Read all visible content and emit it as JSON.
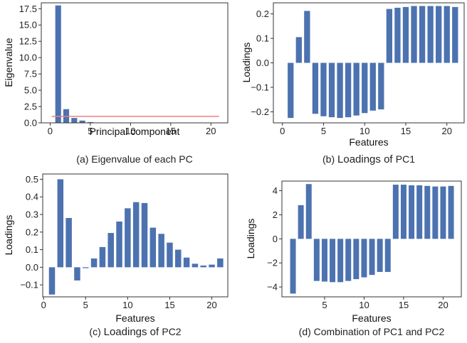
{
  "colors": {
    "bar": "#4c72b0",
    "threshold": "#f08080",
    "frame": "#333333"
  },
  "chart_data": [
    {
      "type": "bar",
      "caption": "(a) Eigenvalue of each PC",
      "xlabel": "Principal component",
      "ylabel": "Eigenvalue",
      "xlim": [
        -1.1,
        22.1
      ],
      "ylim": [
        0,
        18.4
      ],
      "xticks": [
        0,
        5,
        10,
        15,
        20
      ],
      "yticks": [
        0,
        2.5,
        5,
        7.5,
        10,
        12.5,
        15,
        17.5
      ],
      "ytick_labels": [
        "0.0",
        "2.5",
        "5.0",
        "7.5",
        "10.0",
        "12.5",
        "15.0",
        "17.5"
      ],
      "x": [
        1,
        2,
        3,
        4,
        5
      ],
      "values": [
        18.0,
        2.1,
        0.75,
        0.35,
        0.12
      ],
      "threshold": {
        "value": 1.0,
        "from": 0.2,
        "to": 21
      }
    },
    {
      "type": "bar",
      "caption_prefix": "(b) ",
      "caption_strong": "Loadings of ",
      "caption_suffix": "PC1",
      "xlabel": "Features",
      "ylabel": "Loadings",
      "xlim": [
        -1.1,
        22.1
      ],
      "ylim": [
        -0.245,
        0.245
      ],
      "xticks": [
        0,
        5,
        10,
        15,
        20
      ],
      "yticks": [
        -0.2,
        -0.1,
        0.0,
        0.1,
        0.2
      ],
      "ytick_labels": [
        "−0.2",
        "−0.1",
        "0.0",
        "0.1",
        "0.2"
      ],
      "x": [
        1,
        2,
        3,
        4,
        5,
        6,
        7,
        8,
        9,
        10,
        11,
        12,
        13,
        14,
        15,
        16,
        17,
        18,
        19,
        20,
        21
      ],
      "values": [
        -0.225,
        0.105,
        0.212,
        -0.208,
        -0.218,
        -0.222,
        -0.225,
        -0.222,
        -0.215,
        -0.205,
        -0.195,
        -0.19,
        0.22,
        0.225,
        0.228,
        0.232,
        0.232,
        0.232,
        0.232,
        0.232,
        0.228
      ]
    },
    {
      "type": "bar",
      "caption_prefix": "(c) ",
      "caption_strong": "Loadings of ",
      "caption_suffix": "PC2",
      "xlabel": "Features",
      "ylabel": "Loadings",
      "xlim": [
        -0.1,
        21.9
      ],
      "ylim": [
        -0.168,
        0.53
      ],
      "xticks": [
        0,
        5,
        10,
        15,
        20
      ],
      "yticks": [
        -0.1,
        0.0,
        0.1,
        0.2,
        0.3,
        0.4,
        0.5
      ],
      "ytick_labels": [
        "−0.1",
        "0.0",
        "0.1",
        "0.2",
        "0.3",
        "0.4",
        "0.5"
      ],
      "x": [
        1,
        2,
        3,
        4,
        5,
        6,
        7,
        8,
        9,
        10,
        11,
        12,
        13,
        14,
        15,
        16,
        17,
        18,
        19,
        20,
        21
      ],
      "values": [
        -0.155,
        0.5,
        0.28,
        -0.075,
        -0.005,
        0.05,
        0.115,
        0.195,
        0.26,
        0.335,
        0.37,
        0.365,
        0.225,
        0.19,
        0.14,
        0.1,
        0.055,
        0.02,
        0.01,
        0.015,
        0.05
      ]
    },
    {
      "type": "bar",
      "caption": "(d) Combination of PC1 and PC2",
      "xlabel": "Features",
      "ylabel": "Loadings",
      "xlim": [
        -0.4,
        22.3
      ],
      "ylim": [
        -4.82,
        4.8
      ],
      "xticks": [
        5,
        10,
        15,
        20
      ],
      "yticks": [
        -4,
        -2,
        0,
        2,
        4
      ],
      "ytick_labels": [
        "−4",
        "−2",
        "0",
        "2",
        "4"
      ],
      "x": [
        1,
        2,
        3,
        4,
        5,
        6,
        7,
        8,
        9,
        10,
        11,
        12,
        13,
        14,
        15,
        16,
        17,
        18,
        19,
        20,
        21
      ],
      "values": [
        -4.55,
        2.8,
        4.55,
        -3.5,
        -3.55,
        -3.6,
        -3.6,
        -3.5,
        -3.35,
        -3.2,
        -3.0,
        -2.75,
        -2.75,
        4.5,
        4.5,
        4.45,
        4.45,
        4.4,
        4.35,
        4.35,
        4.4
      ]
    }
  ]
}
